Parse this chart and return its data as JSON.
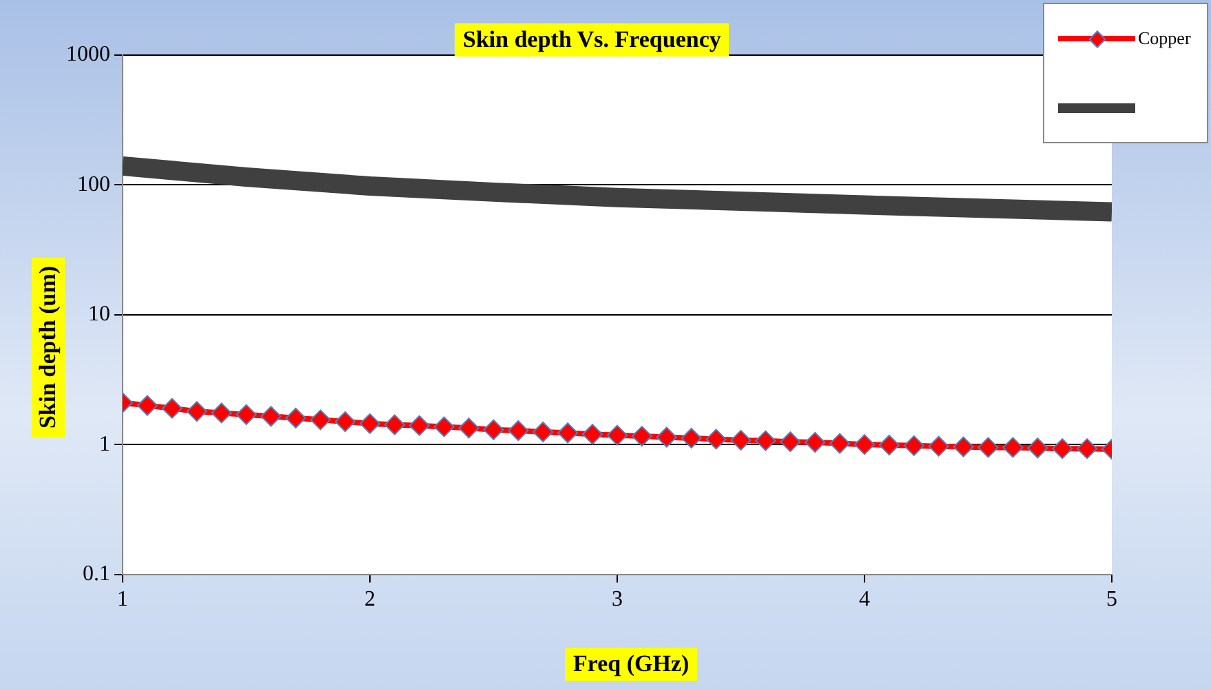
{
  "chart_data": {
    "type": "line",
    "title": "Skin depth Vs.  Frequency",
    "xlabel": "Freq (GHz)",
    "ylabel": "Skin depth (um)",
    "xlim": [
      1,
      5
    ],
    "xticks": [
      1,
      2,
      3,
      4,
      5
    ],
    "ylim": [
      0.1,
      1000
    ],
    "yticks": [
      0.1,
      1,
      10,
      100,
      1000
    ],
    "log": "y",
    "grid": "y",
    "legend": "top right",
    "series": [
      {
        "name": "Copper",
        "color": "#ff0000",
        "marker": "diamond",
        "x": [
          1,
          1.1,
          1.2,
          1.3,
          1.4,
          1.5,
          1.6,
          1.7,
          1.8,
          1.9,
          2,
          2.1,
          2.2,
          2.3,
          2.4,
          2.5,
          2.6,
          2.7,
          2.8,
          2.9,
          3,
          3.1,
          3.2,
          3.3,
          3.4,
          3.5,
          3.6,
          3.7,
          3.8,
          3.9,
          4,
          4.1,
          4.2,
          4.3,
          4.4,
          4.5,
          4.6,
          4.7,
          4.8,
          4.9,
          5
        ],
        "values": [
          2.1,
          2.0,
          1.9,
          1.8,
          1.75,
          1.7,
          1.65,
          1.6,
          1.55,
          1.5,
          1.45,
          1.42,
          1.4,
          1.37,
          1.34,
          1.3,
          1.28,
          1.25,
          1.23,
          1.2,
          1.18,
          1.16,
          1.14,
          1.12,
          1.1,
          1.08,
          1.07,
          1.05,
          1.04,
          1.02,
          1.0,
          0.99,
          0.98,
          0.97,
          0.96,
          0.95,
          0.95,
          0.94,
          0.93,
          0.93,
          0.92
        ]
      },
      {
        "color": "#404040",
        "marker": "none",
        "x": [
          1,
          1.5,
          2,
          2.5,
          3,
          3.5,
          4,
          4.5,
          5
        ],
        "values": [
          140,
          115,
          98,
          88,
          80,
          75,
          70,
          66,
          62
        ]
      }
    ]
  }
}
